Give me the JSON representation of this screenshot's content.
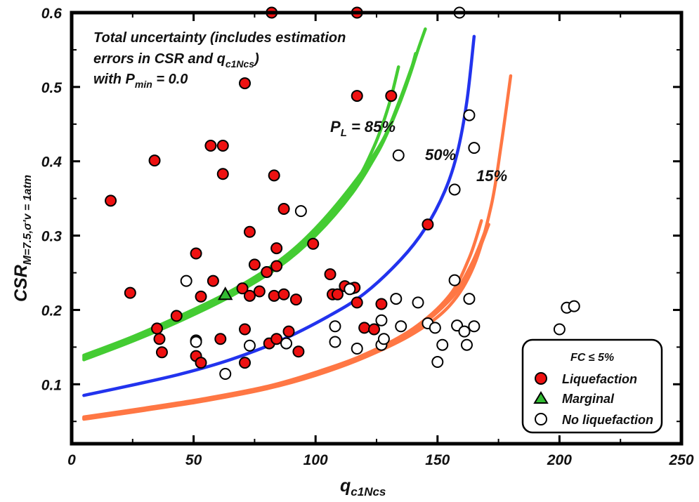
{
  "chart_data": {
    "type": "scatter",
    "xlabel_main": "q",
    "xlabel_sub": "c1Ncs",
    "ylabel_main": "CSR",
    "ylabel_sub": "M=7.5,σ'v = 1atm",
    "xlim": [
      0,
      250
    ],
    "ylim": [
      0.02,
      0.6
    ],
    "x_ticks": [
      0,
      50,
      100,
      150,
      200,
      250
    ],
    "y_ticks": [
      0.1,
      0.2,
      0.3,
      0.4,
      0.5,
      0.6
    ],
    "x_tick_labels": [
      "0",
      "50",
      "100",
      "150",
      "200",
      "250"
    ],
    "y_tick_labels": [
      "0.1",
      "0.2",
      "0.3",
      "0.4",
      "0.5",
      "0.6"
    ],
    "grid": false,
    "annotation": {
      "line1": "Total uncertainty (includes estimation",
      "line2_pre": "errors in CSR and q",
      "line2_sub": "c1Ncs",
      "line2_post": ")",
      "line3_pre": "with P",
      "line3_sub": "min",
      "line3_post": " = 0.0"
    },
    "curve_labels": {
      "p85_main": "P",
      "p85_sub": "L",
      "p85_rest": " = 85%",
      "p50": "50%",
      "p15": "15%"
    },
    "curves": [
      {
        "label": "85%",
        "color": "#44cc33",
        "copies": [
          {
            "x": [
              5,
              25,
              45,
              65,
              85,
              100,
              115,
              125,
              132,
              138,
              142,
              145
            ],
            "y": [
              0.133,
              0.158,
              0.186,
              0.218,
              0.258,
              0.3,
              0.357,
              0.41,
              0.46,
              0.51,
              0.55,
              0.578
            ]
          },
          {
            "x": [
              5,
              25,
              45,
              65,
              85,
              100,
              115,
              124,
              130,
              134
            ],
            "y": [
              0.137,
              0.162,
              0.19,
              0.222,
              0.264,
              0.306,
              0.364,
              0.42,
              0.475,
              0.527
            ]
          },
          {
            "x": [
              5,
              25,
              45,
              65,
              85,
              100,
              115,
              126,
              133,
              138,
              141
            ],
            "y": [
              0.135,
              0.16,
              0.188,
              0.22,
              0.261,
              0.303,
              0.36,
              0.415,
              0.466,
              0.51,
              0.545
            ]
          },
          {
            "x": [
              5,
              25,
              45,
              65,
              85,
              100,
              115,
              127,
              134,
              140
            ],
            "y": [
              0.139,
              0.164,
              0.193,
              0.225,
              0.266,
              0.31,
              0.368,
              0.425,
              0.478,
              0.532
            ]
          }
        ]
      },
      {
        "label": "50%",
        "color": "#2233ee",
        "copies": [
          {
            "x": [
              5,
              25,
              45,
              65,
              85,
              105,
              120,
              135,
              145,
              153,
              158,
              162,
              165
            ],
            "y": [
              0.085,
              0.099,
              0.114,
              0.133,
              0.158,
              0.191,
              0.222,
              0.268,
              0.31,
              0.36,
              0.41,
              0.48,
              0.568
            ]
          }
        ]
      },
      {
        "label": "15%",
        "color": "#ff7744",
        "copies": [
          {
            "x": [
              5,
              30,
              55,
              80,
              100,
              120,
              140,
              155,
              165,
              172,
              176,
              180
            ],
            "y": [
              0.053,
              0.065,
              0.078,
              0.094,
              0.112,
              0.136,
              0.168,
              0.206,
              0.26,
              0.34,
              0.42,
              0.515
            ]
          },
          {
            "x": [
              5,
              30,
              55,
              80,
              100,
              120,
              140,
              155,
              163,
              168
            ],
            "y": [
              0.056,
              0.068,
              0.081,
              0.097,
              0.116,
              0.14,
              0.175,
              0.22,
              0.27,
              0.32
            ]
          },
          {
            "x": [
              5,
              30,
              55,
              80,
              100,
              120,
              140,
              155,
              164,
              170
            ],
            "y": [
              0.054,
              0.066,
              0.08,
              0.096,
              0.114,
              0.138,
              0.172,
              0.214,
              0.262,
              0.31
            ]
          },
          {
            "x": [
              5,
              30,
              55,
              80,
              100,
              120,
              140,
              156,
              165,
              171
            ],
            "y": [
              0.055,
              0.067,
              0.079,
              0.095,
              0.115,
              0.139,
              0.173,
              0.217,
              0.266,
              0.315
            ]
          }
        ]
      }
    ],
    "series": [
      {
        "name": "Liquefaction",
        "color": "#ee1111",
        "marker": "circle",
        "points": [
          [
            16,
            0.347
          ],
          [
            24,
            0.223
          ],
          [
            34,
            0.401
          ],
          [
            35,
            0.175
          ],
          [
            36,
            0.161
          ],
          [
            37,
            0.143
          ],
          [
            43,
            0.192
          ],
          [
            51,
            0.276
          ],
          [
            51,
            0.138
          ],
          [
            53,
            0.218
          ],
          [
            53,
            0.129
          ],
          [
            57,
            0.421
          ],
          [
            58,
            0.239
          ],
          [
            61,
            0.161
          ],
          [
            62,
            0.421
          ],
          [
            62,
            0.383
          ],
          [
            70,
            0.229
          ],
          [
            71,
            0.505
          ],
          [
            71,
            0.174
          ],
          [
            71,
            0.129
          ],
          [
            73,
            0.305
          ],
          [
            73,
            0.219
          ],
          [
            75,
            0.261
          ],
          [
            77,
            0.225
          ],
          [
            80,
            0.251
          ],
          [
            81,
            0.155
          ],
          [
            82,
            0.6
          ],
          [
            83,
            0.381
          ],
          [
            83,
            0.219
          ],
          [
            84,
            0.283
          ],
          [
            84,
            0.259
          ],
          [
            84,
            0.161
          ],
          [
            87,
            0.221
          ],
          [
            87,
            0.336
          ],
          [
            89,
            0.171
          ],
          [
            92,
            0.214
          ],
          [
            93,
            0.144
          ],
          [
            99,
            0.289
          ],
          [
            106,
            0.248
          ],
          [
            107,
            0.221
          ],
          [
            109,
            0.221
          ],
          [
            112,
            0.232
          ],
          [
            115,
            0.229
          ],
          [
            116,
            0.23
          ],
          [
            117,
            0.6
          ],
          [
            117,
            0.488
          ],
          [
            117,
            0.21
          ],
          [
            120,
            0.176
          ],
          [
            124,
            0.174
          ],
          [
            127,
            0.208
          ],
          [
            131,
            0.488
          ],
          [
            146,
            0.315
          ]
        ]
      },
      {
        "name": "Marginal",
        "color": "#33bb33",
        "marker": "triangle",
        "points": [
          [
            63,
            0.221
          ]
        ]
      },
      {
        "name": "No liquefaction",
        "color": "#ffffff",
        "marker": "open-circle",
        "points": [
          [
            47,
            0.239
          ],
          [
            51,
            0.159
          ],
          [
            51,
            0.157
          ],
          [
            63,
            0.114
          ],
          [
            73,
            0.152
          ],
          [
            88,
            0.155
          ],
          [
            94,
            0.333
          ],
          [
            108,
            0.178
          ],
          [
            108,
            0.157
          ],
          [
            114,
            0.228
          ],
          [
            117,
            0.148
          ],
          [
            127,
            0.186
          ],
          [
            127,
            0.153
          ],
          [
            128,
            0.161
          ],
          [
            133,
            0.215
          ],
          [
            134,
            0.408
          ],
          [
            135,
            0.178
          ],
          [
            142,
            0.21
          ],
          [
            146,
            0.182
          ],
          [
            149,
            0.176
          ],
          [
            150,
            0.13
          ],
          [
            152,
            0.153
          ],
          [
            157,
            0.24
          ],
          [
            157,
            0.362
          ],
          [
            158,
            0.179
          ],
          [
            159,
            0.6
          ],
          [
            161,
            0.171
          ],
          [
            162,
            0.153
          ],
          [
            163,
            0.215
          ],
          [
            163,
            0.462
          ],
          [
            165,
            0.178
          ],
          [
            165,
            0.418
          ],
          [
            200,
            0.174
          ],
          [
            203,
            0.203
          ],
          [
            206,
            0.205
          ]
        ]
      }
    ],
    "legend": {
      "title_pre": "FC ",
      "title_sym": "≤",
      "title_post": " 5%",
      "placement": "bottom-right",
      "items": [
        "Liquefaction",
        "Marginal",
        "No liquefaction"
      ]
    }
  }
}
